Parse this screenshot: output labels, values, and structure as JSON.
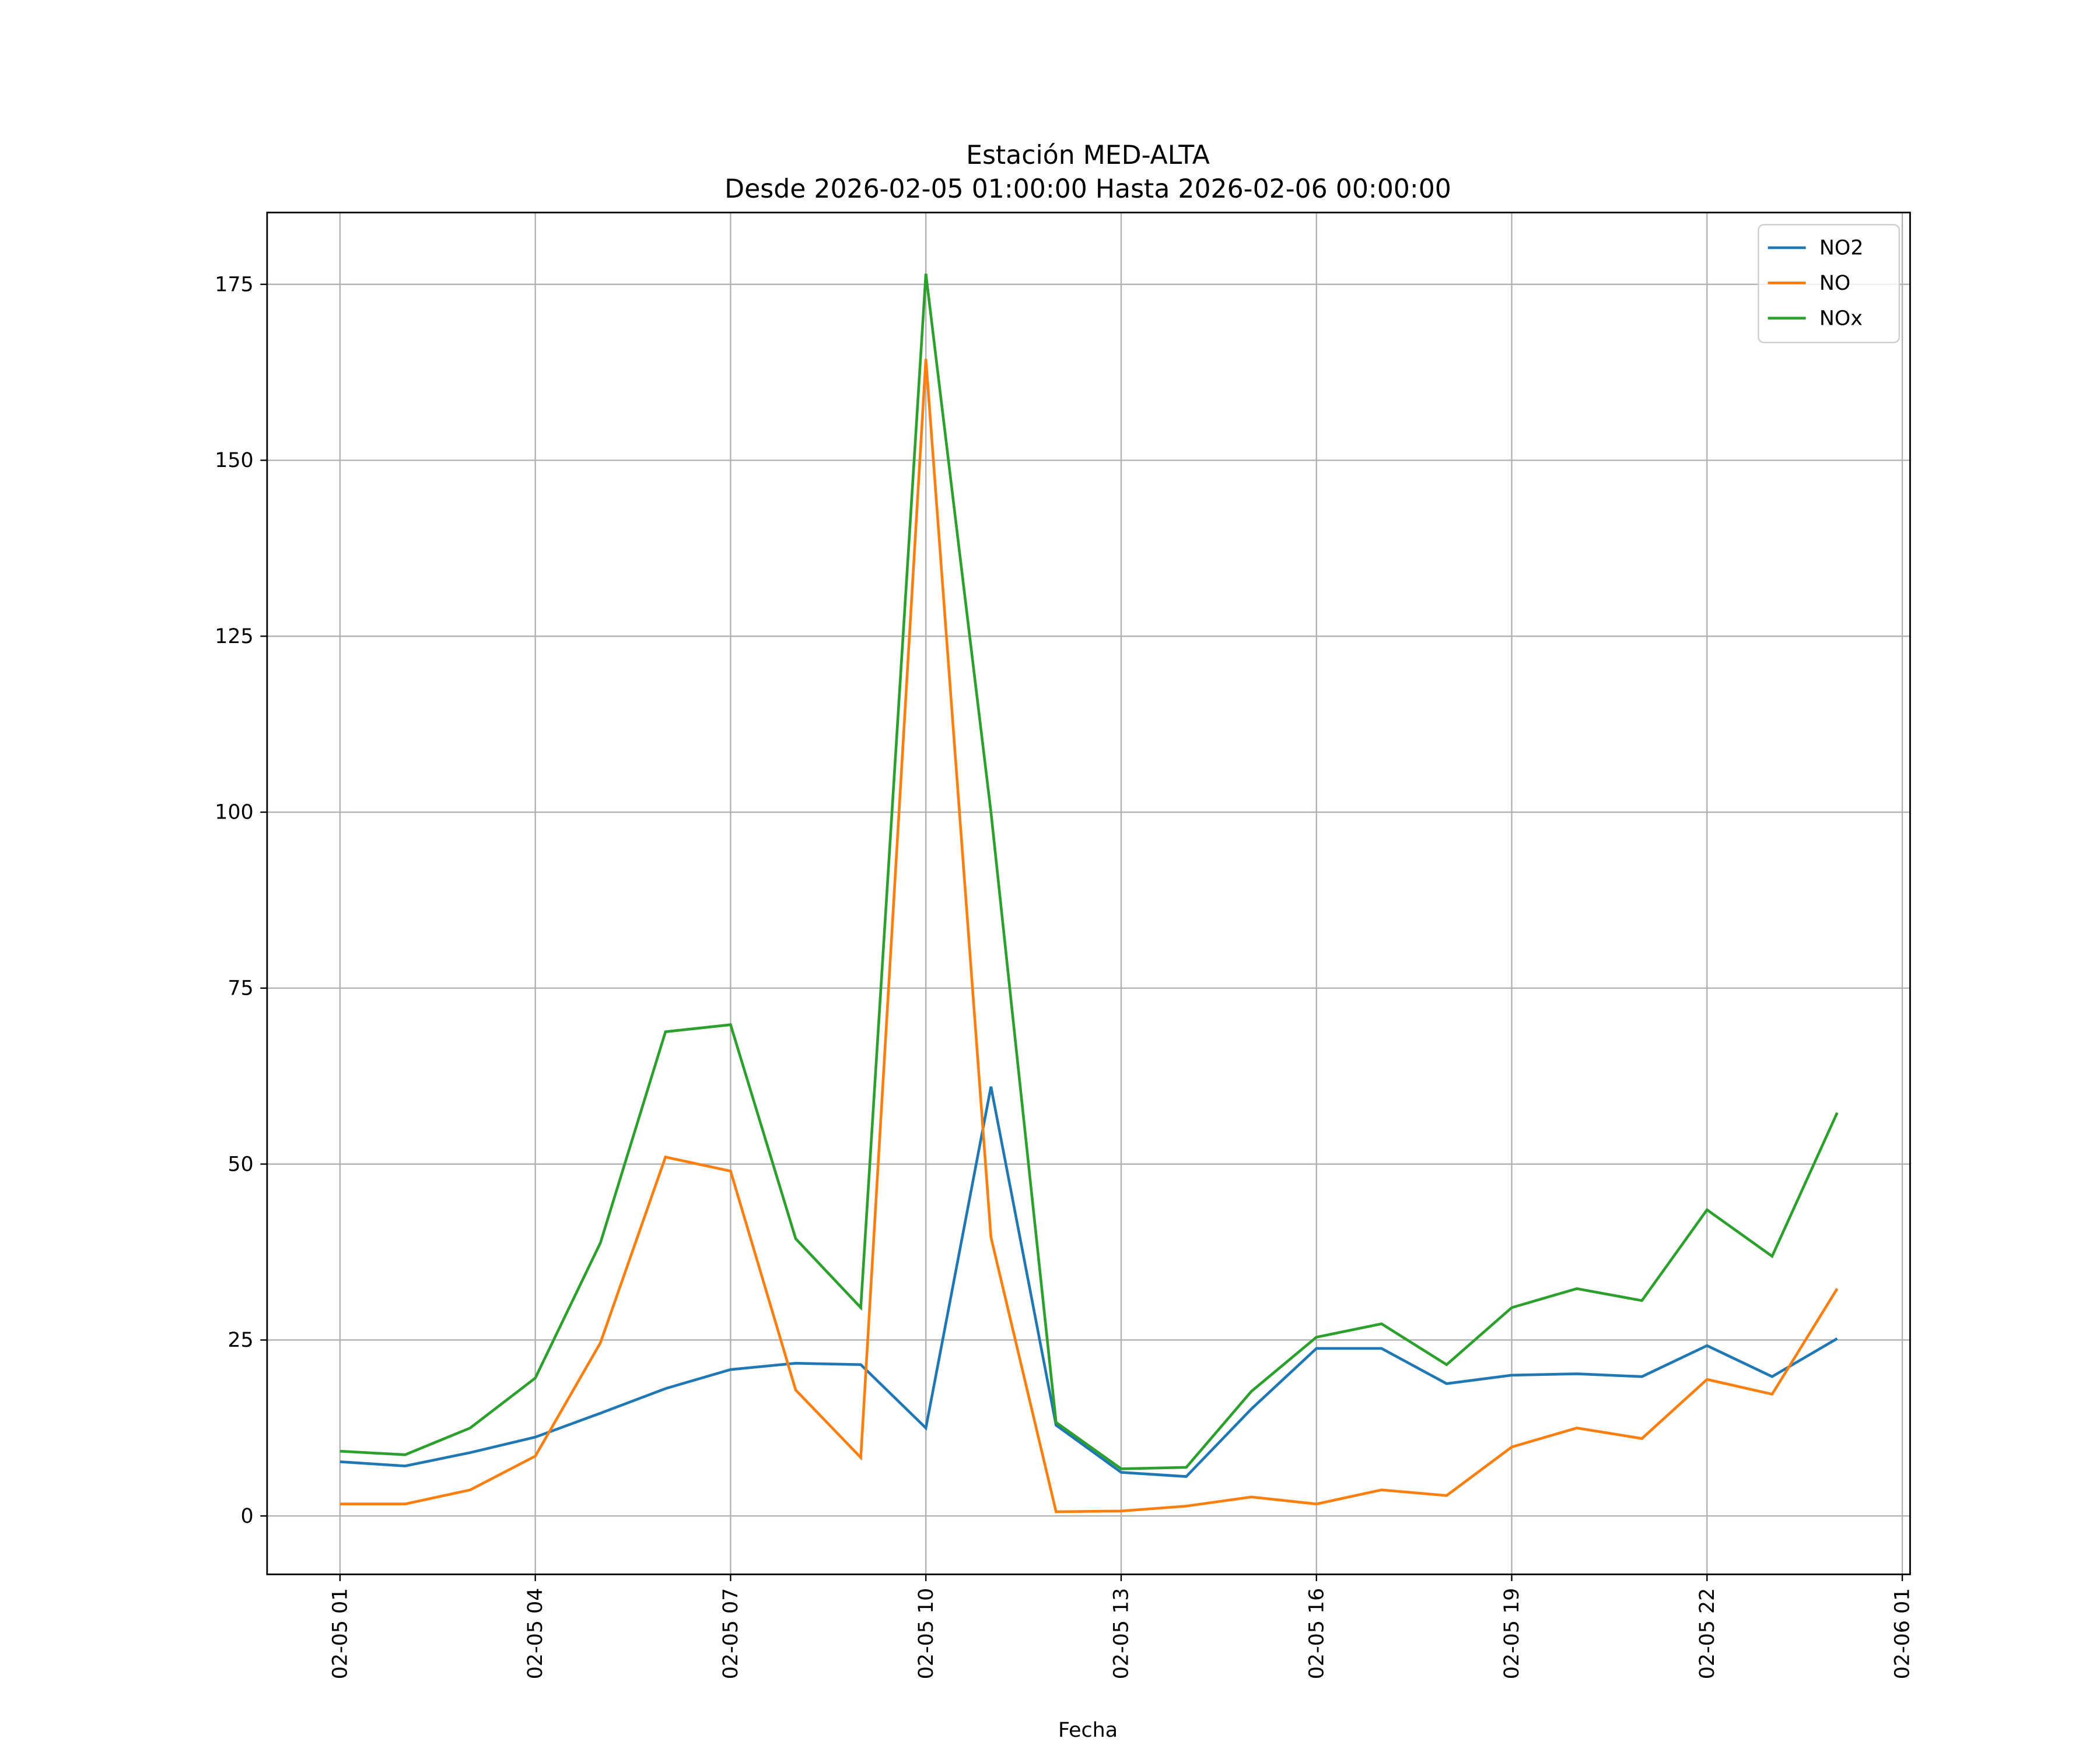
{
  "chart_data": {
    "type": "line",
    "title": "Estación MED-ALTA",
    "subtitle": "Desde 2026-02-05 01:00:00 Hasta 2026-02-06 00:00:00",
    "xlabel": "Fecha",
    "ylabel": "",
    "x": [
      "02-05 01",
      "02-05 02",
      "02-05 03",
      "02-05 04",
      "02-05 05",
      "02-05 06",
      "02-05 07",
      "02-05 08",
      "02-05 09",
      "02-05 10",
      "02-05 11",
      "02-05 12",
      "02-05 13",
      "02-05 14",
      "02-05 15",
      "02-05 16",
      "02-05 17",
      "02-05 18",
      "02-05 19",
      "02-05 20",
      "02-05 21",
      "02-05 22",
      "02-05 23",
      "02-06 00"
    ],
    "x_hours": [
      0,
      1,
      2,
      3,
      4,
      5,
      6,
      7,
      8,
      9,
      10,
      11,
      12,
      13,
      14,
      15,
      16,
      17,
      18,
      19,
      20,
      21,
      22,
      23
    ],
    "xticks": [
      {
        "label": "02-05 01",
        "hour": 0
      },
      {
        "label": "02-05 04",
        "hour": 3
      },
      {
        "label": "02-05 07",
        "hour": 6
      },
      {
        "label": "02-05 10",
        "hour": 9
      },
      {
        "label": "02-05 13",
        "hour": 12
      },
      {
        "label": "02-05 16",
        "hour": 15
      },
      {
        "label": "02-05 19",
        "hour": 18
      },
      {
        "label": "02-05 22",
        "hour": 21
      },
      {
        "label": "02-06 01",
        "hour": 24
      }
    ],
    "xlim_hours": [
      -1.12,
      24.12
    ],
    "yticks": [
      "0",
      "25",
      "50",
      "75",
      "100",
      "125",
      "150",
      "175"
    ],
    "ylim": [
      -8.3,
      185.2
    ],
    "grid": true,
    "legend_position": "top-right",
    "series": [
      {
        "name": "NO2",
        "color": "#1f77b4",
        "values": [
          7.7,
          7.1,
          9.0,
          11.2,
          14.6,
          18.1,
          20.8,
          21.7,
          21.5,
          12.5,
          61.0,
          12.9,
          6.2,
          5.6,
          15.2,
          23.8,
          23.8,
          18.8,
          20.0,
          20.2,
          19.8,
          24.2,
          19.8,
          25.2
        ]
      },
      {
        "name": "NO",
        "color": "#ff7f0e",
        "values": [
          1.7,
          1.7,
          3.7,
          8.5,
          24.6,
          51.0,
          49.0,
          17.9,
          8.3,
          164.4,
          39.6,
          0.6,
          0.7,
          1.4,
          2.7,
          1.7,
          3.7,
          2.9,
          9.8,
          12.5,
          11.0,
          19.4,
          17.3,
          32.3
        ]
      },
      {
        "name": "NOx",
        "color": "#2ca02c",
        "values": [
          9.2,
          8.7,
          12.5,
          19.6,
          38.8,
          68.8,
          69.8,
          39.4,
          29.6,
          176.5,
          100.0,
          13.3,
          6.7,
          6.9,
          17.7,
          25.4,
          27.3,
          21.5,
          29.6,
          32.3,
          30.6,
          43.5,
          36.9,
          57.3
        ]
      }
    ]
  }
}
